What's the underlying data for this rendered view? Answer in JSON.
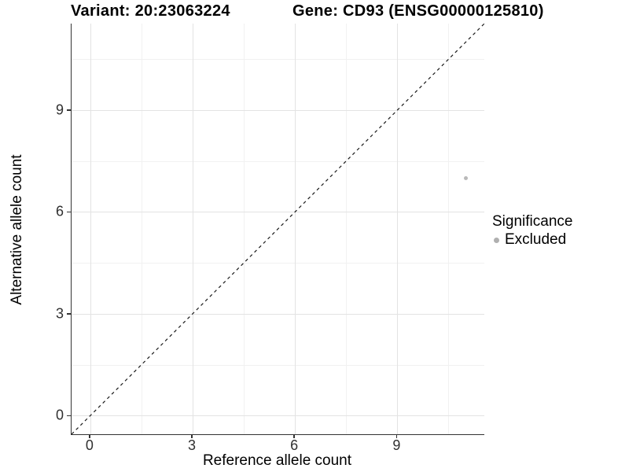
{
  "header": {
    "variant_title": "Variant: 20:23063224",
    "gene_title": "Gene: CD93 (ENSG00000125810)"
  },
  "legend": {
    "title": "Significance",
    "items": [
      {
        "label": "Excluded",
        "color": "#b2b2b2"
      }
    ]
  },
  "colors": {
    "point": "#b9b9b9",
    "legend_dot": "#b0b0b0",
    "grid_major": "#e3e3e3",
    "grid_minor": "#f1f1f1",
    "axis_line": "#333333",
    "reference_line": "#1a1a1a",
    "tick_text": "#303030"
  },
  "chart_data": {
    "type": "scatter",
    "title": "Variant: 20:23063224 | Gene: CD93 (ENSG00000125810)",
    "xlabel": "Reference allele count",
    "ylabel": "Alternative allele count",
    "xlim": [
      -0.55,
      11.55
    ],
    "ylim": [
      -0.55,
      11.55
    ],
    "x_ticks": [
      0,
      3,
      6,
      9
    ],
    "y_ticks": [
      0,
      3,
      6,
      9
    ],
    "x_minor_ticks": [
      1.5,
      4.5,
      7.5,
      10.5
    ],
    "y_minor_ticks": [
      1.5,
      4.5,
      7.5,
      10.5
    ],
    "grid": true,
    "legend_position": "right",
    "series": [
      {
        "name": "Excluded",
        "color": "#b9b9b9",
        "points": [
          {
            "x": 11,
            "y": 7
          }
        ]
      }
    ],
    "reference_line": {
      "type": "identity",
      "slope": 1,
      "intercept": 0,
      "style": "dashed"
    }
  }
}
